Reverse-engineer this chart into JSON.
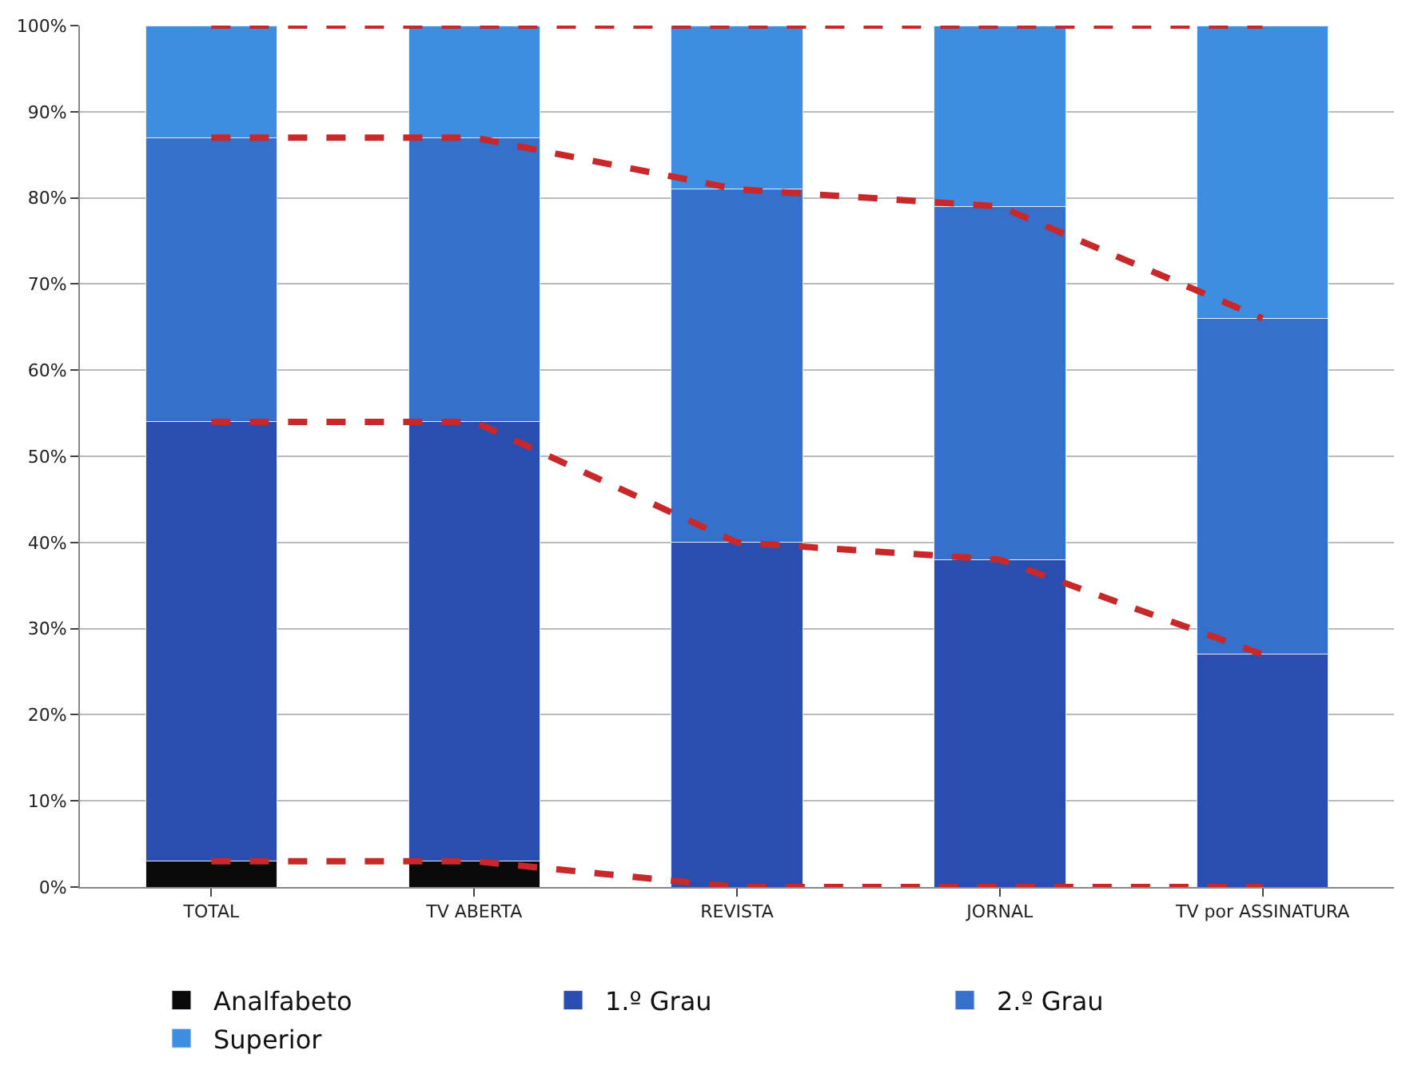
{
  "chart_data": {
    "type": "bar",
    "stacked": true,
    "categories": [
      "TOTAL",
      "TV ABERTA",
      "REVISTA",
      "JORNAL",
      "TV por ASSINATURA"
    ],
    "series": [
      {
        "name": "Analfabeto",
        "color": "#0a0a0a",
        "values": [
          3,
          3,
          0,
          0,
          0
        ]
      },
      {
        "name": "1.º Grau",
        "color": "#2a4db0",
        "values": [
          51,
          51,
          40,
          38,
          27
        ]
      },
      {
        "name": "2.º Grau",
        "color": "#3470cc",
        "values": [
          33,
          33,
          41,
          41,
          39
        ]
      },
      {
        "name": "Superior",
        "color": "#3d8ee0",
        "values": [
          13,
          13,
          19,
          21,
          34
        ]
      },
      {
        "type": "line",
        "color": "#c8282a",
        "line_style": "dashed",
        "values": [
          3,
          3,
          0,
          0,
          0
        ]
      },
      {
        "type": "line",
        "color": "#c8282a",
        "line_style": "dashed",
        "values": [
          54,
          54,
          40,
          38,
          27
        ]
      },
      {
        "type": "line",
        "color": "#c8282a",
        "line_style": "dashed",
        "values": [
          87,
          87,
          81,
          79,
          66
        ]
      },
      {
        "type": "line",
        "color": "#c8282a",
        "line_style": "dashed",
        "values": [
          100,
          100,
          100,
          100,
          100
        ]
      }
    ],
    "ylim": [
      0,
      100
    ],
    "yticks": [
      {
        "value": 0,
        "label": "0%"
      },
      {
        "value": 10,
        "label": "10%"
      },
      {
        "value": 20,
        "label": "20%"
      },
      {
        "value": 30,
        "label": "30%"
      },
      {
        "value": 40,
        "label": "40%"
      },
      {
        "value": 50,
        "label": "50%"
      },
      {
        "value": 60,
        "label": "60%"
      },
      {
        "value": 70,
        "label": "70%"
      },
      {
        "value": 80,
        "label": "80%"
      },
      {
        "value": 90,
        "label": "90%"
      },
      {
        "value": 100,
        "label": "100%"
      }
    ],
    "grid": "y",
    "legend": "bottom"
  }
}
